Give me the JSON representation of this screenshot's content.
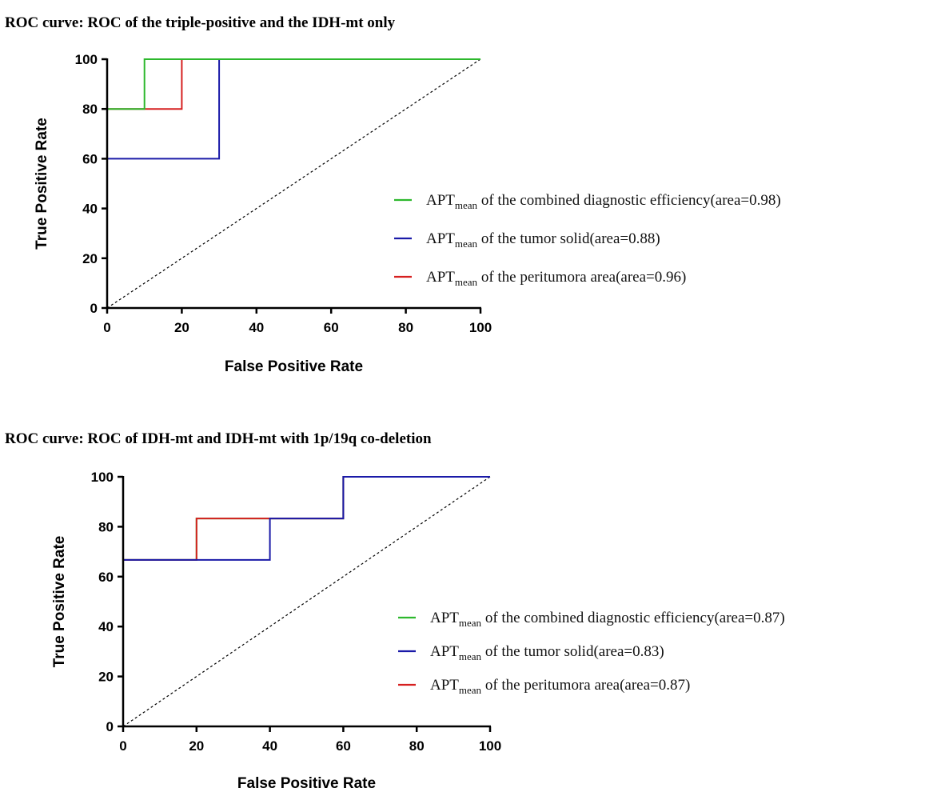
{
  "chart_data": [
    {
      "type": "line",
      "title": "ROC curve: ROC of the triple-positive and the IDH-mt only",
      "xlabel": "False Positive Rate",
      "ylabel": "True Positive Rate",
      "xlim": [
        0,
        100
      ],
      "ylim": [
        0,
        100
      ],
      "xticks": [
        0,
        20,
        40,
        60,
        80,
        100
      ],
      "yticks": [
        0,
        20,
        40,
        60,
        80,
        100
      ],
      "reference_line": {
        "style": "dashed",
        "color": "#000000",
        "x": [
          0,
          100
        ],
        "y": [
          0,
          100
        ]
      },
      "legend_position": "center-right",
      "series": [
        {
          "name": "APTmean of the tumor solid(area=0.88)",
          "legend_prefix": "APT",
          "legend_sub": "mean",
          "legend_suffix": " of the tumor solid(area=0.88)",
          "color": "#1a1aa8",
          "x": [
            0,
            0,
            30,
            30,
            100
          ],
          "y": [
            0,
            60,
            60,
            100,
            100
          ]
        },
        {
          "name": "APTmean of the peritumora area(area=0.96)",
          "legend_prefix": "APT",
          "legend_sub": "mean",
          "legend_suffix": " of the peritumora area(area=0.96)",
          "color": "#d62020",
          "x": [
            0,
            0,
            20,
            20,
            100
          ],
          "y": [
            0,
            80,
            80,
            100,
            100
          ]
        },
        {
          "name": "APTmean of the combined diagnostic efficiency(area=0.98)",
          "legend_prefix": "APT",
          "legend_sub": "mean",
          "legend_suffix": " of the combined diagnostic efficiency(area=0.98)",
          "color": "#2db82d",
          "x": [
            0,
            0,
            10,
            10,
            100
          ],
          "y": [
            0,
            80,
            80,
            100,
            100
          ]
        }
      ],
      "legend_order": [
        2,
        0,
        1
      ]
    },
    {
      "type": "line",
      "title": "ROC curve: ROC of IDH-mt and IDH-mt with 1p/19q co-deletion",
      "xlabel": "False Positive Rate",
      "ylabel": "True Positive Rate",
      "xlim": [
        0,
        100
      ],
      "ylim": [
        0,
        100
      ],
      "xticks": [
        0,
        20,
        40,
        60,
        80,
        100
      ],
      "yticks": [
        0,
        20,
        40,
        60,
        80,
        100
      ],
      "reference_line": {
        "style": "dashed",
        "color": "#000000",
        "x": [
          0,
          100
        ],
        "y": [
          0,
          100
        ]
      },
      "legend_position": "center-right",
      "series": [
        {
          "name": "APTmean of the combined diagnostic efficiency(area=0.87)",
          "legend_prefix": "APT",
          "legend_sub": "mean",
          "legend_suffix": " of the combined diagnostic efficiency(area=0.87)",
          "color": "#2db82d",
          "x": [
            0,
            0,
            20,
            20,
            60,
            60,
            100
          ],
          "y": [
            0,
            66.7,
            66.7,
            83.3,
            83.3,
            100,
            100
          ]
        },
        {
          "name": "APTmean of the peritumora area(area=0.87)",
          "legend_prefix": "APT",
          "legend_sub": "mean",
          "legend_suffix": " of the peritumora area(area=0.87)",
          "color": "#d62020",
          "x": [
            0,
            0,
            20,
            20,
            60,
            60,
            100
          ],
          "y": [
            0,
            66.7,
            66.7,
            83.3,
            83.3,
            100,
            100
          ]
        },
        {
          "name": "APTmean of the tumor solid(area=0.83)",
          "legend_prefix": "APT",
          "legend_sub": "mean",
          "legend_suffix": " of the tumor solid(area=0.83)",
          "color": "#1a1aa8",
          "x": [
            0,
            0,
            40,
            40,
            60,
            60,
            100
          ],
          "y": [
            0,
            66.7,
            66.7,
            83.3,
            83.3,
            100,
            100
          ]
        }
      ],
      "legend_order": [
        0,
        2,
        1
      ]
    }
  ]
}
